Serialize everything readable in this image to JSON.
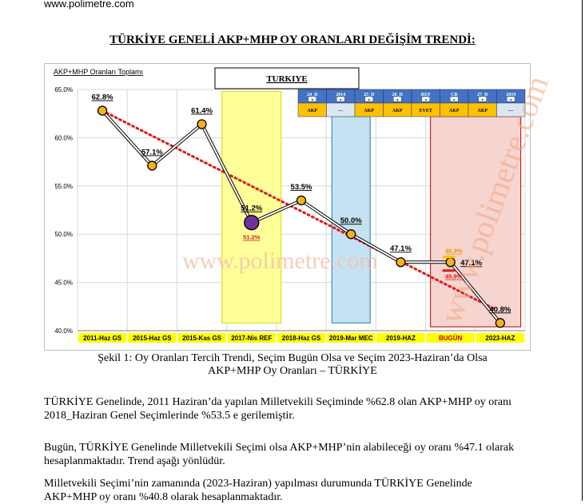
{
  "site": "www.polimetre.com",
  "heading": "TÜRKİYE GENELİ AKP+MHP OY ORANLARI DEĞİŞİM TRENDİ:",
  "chart_data": {
    "type": "line",
    "title": "TURKIYE",
    "ylabel": "AKP+MHP Oranları Toplamı",
    "ylim": [
      40,
      65
    ],
    "yticks": [
      "40.0%",
      "45.0%",
      "50.0%",
      "55.0%",
      "60.0%",
      "65.0%"
    ],
    "categories": [
      "2011-Haz GS",
      "2015-Haz GS",
      "2015-Kas GS",
      "2017-Nis REF",
      "2018-Haz GS",
      "2019-Mar MEC",
      "2019-HAZ",
      "BUGÜN",
      "2023-HAZ"
    ],
    "values": [
      62.8,
      57.1,
      61.4,
      51.2,
      53.5,
      50.0,
      47.1,
      47.1,
      40.8
    ],
    "labels": [
      "62.8%",
      "57.1%",
      "61.4%",
      "51.2%",
      "53.5%",
      "50.0%",
      "47.1%",
      "47.1%",
      "40.8%"
    ],
    "extra_labels": {
      "ref": "51.2%",
      "upper": "48.3%",
      "lower": "45.9%"
    },
    "trend": {
      "from": 62.8,
      "to": 42.2
    },
    "header_tabs": [
      {
        "top": "24_D",
        "bottom": "AKP"
      },
      {
        "top": "2014",
        "bottom": "---"
      },
      {
        "top": "25_D",
        "bottom": "AKP"
      },
      {
        "top": "26_D",
        "bottom": "AKP"
      },
      {
        "top": "REF",
        "bottom": "EVET"
      },
      {
        "top": "CB",
        "bottom": "AKP"
      },
      {
        "top": "27_D",
        "bottom": "AKP"
      },
      {
        "top": "2019",
        "bottom": "---"
      }
    ],
    "colors": {
      "line": "#000000",
      "marker": "#f5b21d",
      "trend": "#e01919",
      "ref_marker": "#7030a0",
      "band_ref": "#ffff99",
      "band_mec": "#c5e2f2",
      "band_now": "#f6d4cf",
      "xlabel_bg": "#ffff00",
      "tab_top": "#4472c4",
      "tab_bottom": "#ffc000"
    },
    "grid": true
  },
  "watermark": "www.polimetre.com",
  "caption_line1": "Şekil 1: Oy Oranları Tercih Trendi, Seçim Bugün Olsa ve Seçim 2023-Haziran’da Olsa",
  "caption_line2": "AKP+MHP Oy Oranları – TÜRKİYE",
  "para1": "TÜRKİYE Genelinde, 2011 Haziran’da yapılan Milletvekili Seçiminde %62.8 olan AKP+MHP oy oranı 2018_Haziran Genel Seçimlerinde %53.5 e gerilemiştir.",
  "para2": "Bugün, TÜRKİYE Genelinde Milletvekili Seçimi olsa AKP+MHP’nin alabileceği oy oranı %47.1 olarak hesaplanmaktadır. Trend aşağı yönlüdür.",
  "para3": "Milletvekili Seçimi’nin zamanında (2023-Haziran) yapılması durumunda TÜRKİYE Genelinde AKP+MHP oy oranı %40.8 olarak hesaplanmaktadır."
}
